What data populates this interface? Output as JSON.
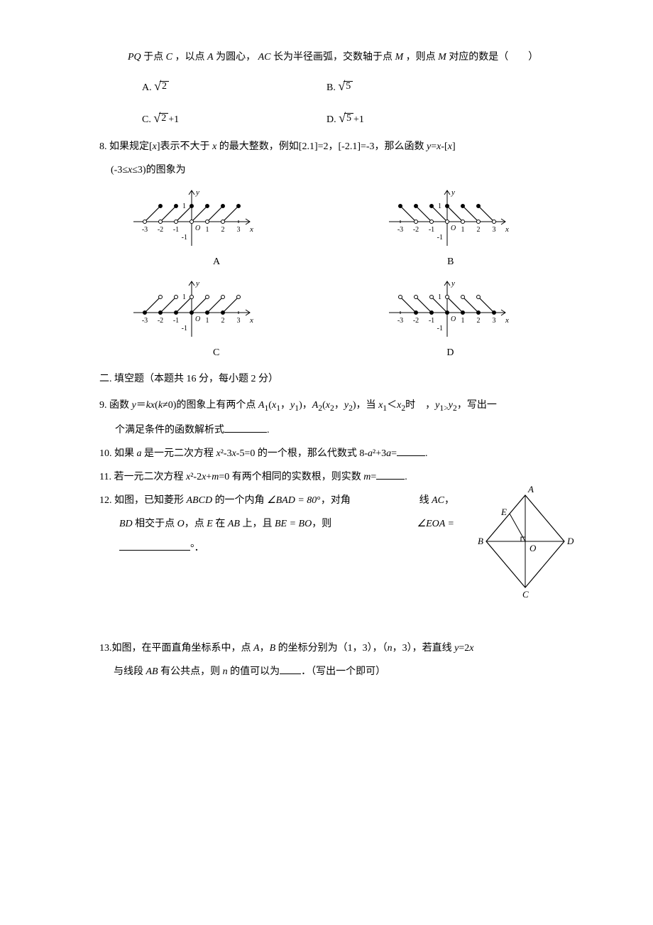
{
  "q7": {
    "prefix_text": "于点",
    "point_c": "C",
    "mid1": "，以点",
    "point_a": "A",
    "mid2": "为圆心，",
    "ac": "AC",
    "mid3": " 长为半径画弧，交数轴于点",
    "point_m1": "M",
    "mid4": "，则点",
    "point_m2": "M",
    "tail": " 对应的数是（　　）",
    "pq": "PQ",
    "choice_a_label": "A.",
    "choice_a_val": "2",
    "choice_b_label": "B.",
    "choice_b_val": "5",
    "choice_c_label": "C.",
    "choice_c_val": "2",
    "choice_c_suffix": "+1",
    "choice_d_label": "D.",
    "choice_d_val": "5",
    "choice_d_suffix": "+1"
  },
  "q8": {
    "num": "8.",
    "text1": "如果规定[",
    "var1": "x",
    "text2": "]表示不大于 ",
    "var2": "x",
    "text3": " 的最大整数，例如[2.1]=2，[-2.1]=-3，那么函数 ",
    "var_y": "y",
    "eq": "=",
    "var_x1": "x",
    "minus": "-[",
    "var_x2": "x",
    "close": "]",
    "line2_pre": "(-3≤",
    "line2_var": "x",
    "line2_post": "≤3)的图象为",
    "label_a": "A",
    "label_b": "B",
    "label_c": "C",
    "label_d": "D"
  },
  "section2": "二. 填空题（本题共 16 分，每小题 2 分）",
  "q9": {
    "num": "9.",
    "t1": "函数 ",
    "y": "y",
    "eq": "＝",
    "k": "kx",
    "paren": "(",
    "k2": "k",
    "neq": "≠0)的图象上有两个点 ",
    "a1": "A",
    "sub1": "1",
    "px1": "(",
    "x1": "x",
    "s1": "1",
    "c1": "，",
    "y1": "y",
    "ys1": "1",
    "cp1": ")，",
    "a2": "A",
    "sub2": "2",
    "px2": "(",
    "x2": "x",
    "s2": "2",
    "c2": "，",
    "y2": "y",
    "ys2": "2",
    "cp2": ")，当 ",
    "xx1": "x",
    "xs1": "1",
    "lt": "＜",
    "xx2": "x",
    "xs2": "2",
    "when": "时　，",
    "yy1": "y",
    "yys1": "1>",
    "yy2": "y",
    "yys2": "2",
    "tail": "，写出一",
    "line2": "个满足条件的函数解析式",
    "period": "."
  },
  "q10": {
    "num": "10.",
    "t1": "如果 ",
    "a": "a",
    "t2": " 是一元二次方程 ",
    "x": "x",
    "sq": "²-3",
    "x2": "x",
    "t3": "-5=0 的一个根，那么代数式 8-",
    "a2": "a",
    "t4": "²+3",
    "a3": "a",
    "eq": "=",
    "period": "."
  },
  "q11": {
    "num": "11.",
    "t1": "若一元二次方程 ",
    "x": "x",
    "t2": "²-2",
    "x2": "x",
    "t3": "+",
    "m": "m",
    "t4": "=0 有两个相同的实数根，则实数 ",
    "m2": "m",
    "eq": "=",
    "period": "."
  },
  "q12": {
    "num": "12.",
    "t1": "如图，已知菱形",
    "abcd": "ABCD",
    "t2": " 的一个内角",
    "angle_bad": "∠BAD = 80",
    "deg": "°",
    "t3": "，对角",
    "line_ac_pre": "线",
    "ac": "AC",
    "comma": "，",
    "bd": "BD",
    "t4": " 相交于点",
    "o": "O",
    "t5": "，点",
    "e": "E",
    "t6": " 在",
    "ab": "AB",
    "t7": " 上，且",
    "be_bo": "BE = BO",
    "t8": "，则",
    "angle_eoa": "∠EOA =",
    "deg2": "°",
    "period": "．",
    "diagram": {
      "label_a": "A",
      "label_b": "B",
      "label_c": "C",
      "label_d": "D",
      "label_e": "E",
      "label_o": "O"
    }
  },
  "q13": {
    "num": "13.",
    "t1": "如图，在平面直角坐标系中，点 ",
    "a": "A",
    "t2": "，",
    "b": "B",
    "t3": " 的坐标分别为（1，3），（",
    "n": "n",
    "t4": "，3），若直线 ",
    "y": "y",
    "eq": "=2",
    "x": "x",
    "line2_t1": "与线段 ",
    "ab": "AB",
    "line2_t2": " 有公共点，则 ",
    "n2": "n",
    "line2_t3": " 的值可以为",
    "line2_t4": "．（写出一个即可）"
  },
  "graph": {
    "axis_color": "#000000",
    "point_color": "#000000",
    "ticks": [
      -3,
      -2,
      -1,
      1,
      2,
      3
    ],
    "ylabel": "y",
    "xlabel": "x",
    "yval": "1",
    "ynegval": "-1",
    "origin": "O"
  }
}
